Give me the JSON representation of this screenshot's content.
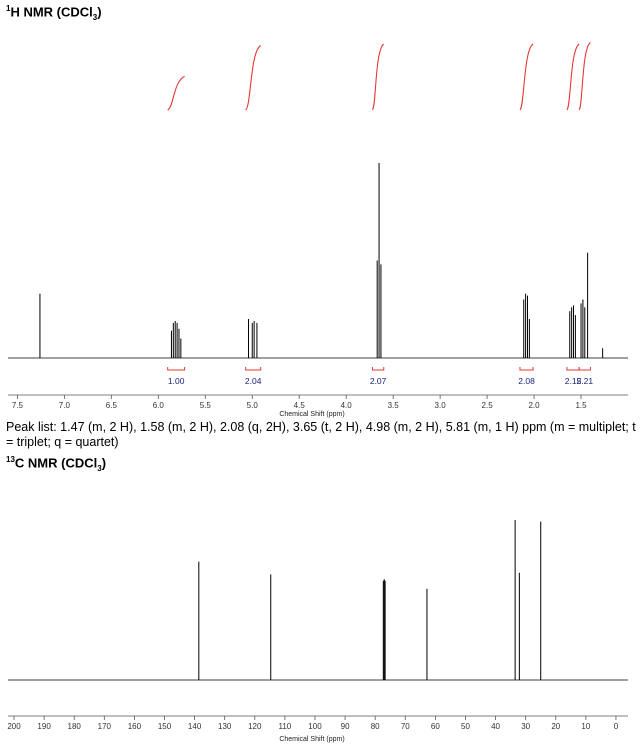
{
  "h_nmr": {
    "title_main": "H NMR (CDCl",
    "title_sup": "1",
    "title_sub": "3",
    "title_close": ")"
  },
  "c_nmr": {
    "title_main": "C NMR (CDCl",
    "title_sup": "13",
    "title_sub": "3",
    "title_close": ")"
  },
  "peak_list_text": "Peak list: 1.47 (m, 2 H), 1.58 (m, 2 H), 2.08 (q, 2H), 3.65 (t, 2 H), 4.98 (m, 2 H), 5.81 (m, 1 H) ppm (m = multiplet; t = triplet; q = quartet)",
  "colors": {
    "spectrum": "#000000",
    "integral": "#e53935",
    "integral_label": "#1a237e",
    "integral_bracket": "#e53935"
  },
  "chart_data": [
    {
      "type": "line",
      "name": "1H NMR spectrum",
      "xlabel": "Chemical Shift (ppm)",
      "ylabel": "",
      "xlim": [
        7.6,
        1.0
      ],
      "x_reversed": true,
      "x_ticks": [
        7.5,
        7.0,
        6.5,
        6.0,
        5.5,
        5.0,
        4.5,
        4.0,
        3.5,
        3.0,
        2.5,
        2.0,
        1.5
      ],
      "x_tick_labels": [
        "7.5",
        "7.0",
        "6.5",
        "6.0",
        "5.5",
        "5.0",
        "4.5",
        "4.0",
        "3.5",
        "3.0",
        "2.5",
        "2.0",
        "1.5"
      ],
      "peaks": [
        {
          "ppm": 7.26,
          "height": 0.33
        },
        {
          "ppm": 5.86,
          "height": 0.14
        },
        {
          "ppm": 5.84,
          "height": 0.18
        },
        {
          "ppm": 5.82,
          "height": 0.19
        },
        {
          "ppm": 5.8,
          "height": 0.18
        },
        {
          "ppm": 5.78,
          "height": 0.15
        },
        {
          "ppm": 5.76,
          "height": 0.1
        },
        {
          "ppm": 5.04,
          "height": 0.2
        },
        {
          "ppm": 5.0,
          "height": 0.18
        },
        {
          "ppm": 4.98,
          "height": 0.19
        },
        {
          "ppm": 4.95,
          "height": 0.18
        },
        {
          "ppm": 3.67,
          "height": 0.5
        },
        {
          "ppm": 3.65,
          "height": 1.0
        },
        {
          "ppm": 3.63,
          "height": 0.48
        },
        {
          "ppm": 2.11,
          "height": 0.3
        },
        {
          "ppm": 2.09,
          "height": 0.33
        },
        {
          "ppm": 2.07,
          "height": 0.32
        },
        {
          "ppm": 2.05,
          "height": 0.2
        },
        {
          "ppm": 1.62,
          "height": 0.24
        },
        {
          "ppm": 1.6,
          "height": 0.26
        },
        {
          "ppm": 1.58,
          "height": 0.27
        },
        {
          "ppm": 1.56,
          "height": 0.22
        },
        {
          "ppm": 1.5,
          "height": 0.28
        },
        {
          "ppm": 1.48,
          "height": 0.3
        },
        {
          "ppm": 1.46,
          "height": 0.26
        },
        {
          "ppm": 1.43,
          "height": 0.54
        },
        {
          "ppm": 1.27,
          "height": 0.05
        }
      ],
      "integrals": [
        {
          "from": 5.9,
          "to": 5.72,
          "value": "1.00",
          "rise": 0.45
        },
        {
          "from": 5.07,
          "to": 4.91,
          "value": "2.04",
          "rise": 0.86
        },
        {
          "from": 3.72,
          "to": 3.6,
          "value": "2.07",
          "rise": 0.88
        },
        {
          "from": 2.15,
          "to": 2.01,
          "value": "2.08",
          "rise": 0.88
        },
        {
          "from": 1.65,
          "to": 1.52,
          "value": "2.15",
          "rise": 0.88
        },
        {
          "from": 1.52,
          "to": 1.4,
          "value": "2.21",
          "rise": 0.9
        }
      ]
    },
    {
      "type": "line",
      "name": "13C NMR spectrum",
      "xlabel": "Chemical Shift (ppm)",
      "ylabel": "",
      "xlim": [
        202,
        -4
      ],
      "x_reversed": true,
      "x_ticks": [
        200,
        190,
        180,
        170,
        160,
        150,
        140,
        130,
        120,
        110,
        100,
        90,
        80,
        70,
        60,
        50,
        40,
        30,
        20,
        10,
        0
      ],
      "x_tick_labels": [
        "200",
        "190",
        "180",
        "170",
        "160",
        "150",
        "140",
        "130",
        "120",
        "110",
        "100",
        "90",
        "80",
        "70",
        "60",
        "50",
        "40",
        "30",
        "20",
        "10",
        "0"
      ],
      "peaks": [
        {
          "ppm": 138.6,
          "height": 0.74
        },
        {
          "ppm": 114.7,
          "height": 0.66
        },
        {
          "ppm": 77.3,
          "height": 0.62
        },
        {
          "ppm": 77.0,
          "height": 0.63
        },
        {
          "ppm": 76.7,
          "height": 0.62
        },
        {
          "ppm": 62.8,
          "height": 0.57
        },
        {
          "ppm": 33.5,
          "height": 1.0
        },
        {
          "ppm": 32.1,
          "height": 0.67
        },
        {
          "ppm": 25.0,
          "height": 0.99
        }
      ]
    }
  ]
}
